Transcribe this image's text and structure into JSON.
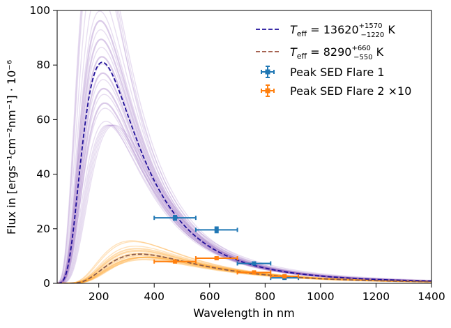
{
  "chart_data": {
    "type": "line",
    "xlabel": "Wavelength in nm",
    "ylabel": "Flux in [ergs⁻¹cm⁻²nm⁻¹] · 10⁻⁶",
    "xlim": [
      50,
      1400
    ],
    "ylim": [
      0,
      100
    ],
    "x_ticks": [
      "200",
      "400",
      "600",
      "800",
      "1000",
      "1200",
      "1400"
    ],
    "y_ticks": [
      "0",
      "20",
      "40",
      "60",
      "80",
      "100"
    ],
    "grid": false,
    "legend_position": "top-right",
    "legend": [
      {
        "text": "T_eff = 13620 (+1570/−1220) K",
        "teff_label": "T",
        "teff_sub": "eff",
        "value": "13620",
        "plus": "+1570",
        "minus": "−1220",
        "unit": "K",
        "color": "#1f0f99",
        "style": "dashed"
      },
      {
        "text": "T_eff = 8290 (+660/−550) K",
        "teff_label": "T",
        "teff_sub": "eff",
        "value": "8290",
        "plus": "+660",
        "minus": "−550",
        "unit": "K",
        "color": "#9a4f3b",
        "style": "dashed"
      },
      {
        "text": "Peak SED Flare 1",
        "color": "#1f77b4",
        "style": "errorbar"
      },
      {
        "text": "Peak SED Flare 2 ×10",
        "color": "#ff7f0e",
        "style": "errorbar"
      }
    ],
    "series": [
      {
        "temperature_K": 13620,
        "peak_flux": 81,
        "color": "#1f0f99",
        "style": "dashed"
      },
      {
        "temperature_K": 8290,
        "peak_flux": 10.7,
        "color": "#8c5a4a",
        "style": "dashed"
      }
    ],
    "sample_bands": [
      {
        "color": "#9467bd",
        "temps_K": [
          11300,
          11600,
          11900,
          12200,
          12500,
          12800,
          13000,
          13200,
          13400,
          13600,
          13800,
          14000,
          14200,
          14400,
          14700,
          15000,
          15300,
          15600
        ],
        "central_temp_K": 13620,
        "central_peak": 81,
        "peak_range": [
          58,
          101
        ]
      },
      {
        "color": "#ffa020",
        "temps_K": [
          7500,
          7700,
          7900,
          8100,
          8300,
          8500,
          8700,
          8900,
          9100
        ],
        "central_temp_K": 8290,
        "central_peak": 10.7,
        "peak_range": [
          9.6,
          12
        ]
      }
    ],
    "errorbars": [
      {
        "name": "Peak SED Flare 1",
        "color": "#1f77b4",
        "points": [
          {
            "x": 475,
            "y": 24,
            "xerr": 75,
            "yerr": 0.8
          },
          {
            "x": 625,
            "y": 19.6,
            "xerr": 75,
            "yerr": 1.0
          },
          {
            "x": 760,
            "y": 7.3,
            "xerr": 60,
            "yerr": 0.5
          },
          {
            "x": 870,
            "y": 2.0,
            "xerr": 50,
            "yerr": 0.4
          }
        ]
      },
      {
        "name": "Peak SED Flare 2 ×10",
        "color": "#ff7f0e",
        "points": [
          {
            "x": 475,
            "y": 8.0,
            "xerr": 75,
            "yerr": 0.3
          },
          {
            "x": 625,
            "y": 9.2,
            "xerr": 75,
            "yerr": 0.4
          },
          {
            "x": 760,
            "y": 4.0,
            "xerr": 60,
            "yerr": 0.3
          },
          {
            "x": 870,
            "y": 2.6,
            "xerr": 50,
            "yerr": 0.3
          }
        ]
      }
    ]
  }
}
